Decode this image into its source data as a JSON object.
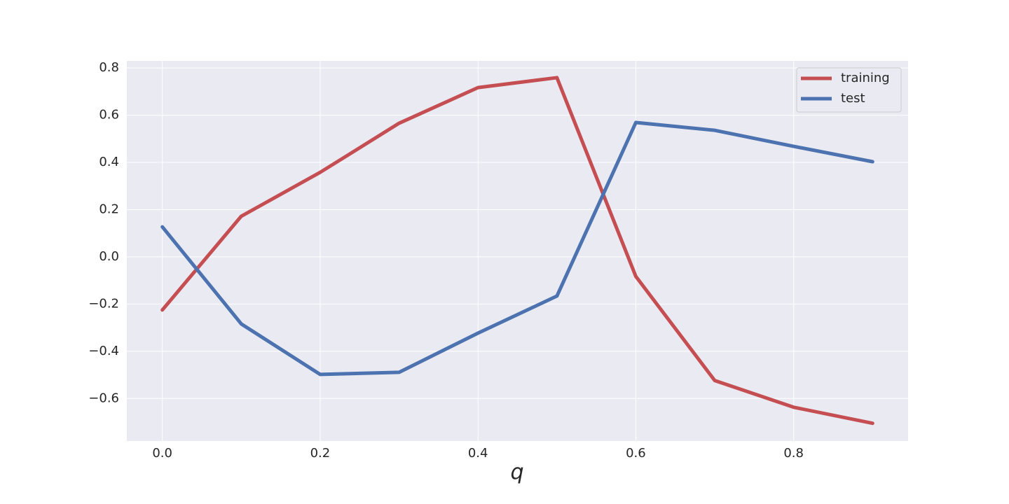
{
  "chart_data": {
    "type": "line",
    "xlabel": "q",
    "x": [
      0.0,
      0.1,
      0.2,
      0.3,
      0.4,
      0.5,
      0.6,
      0.7,
      0.8,
      0.9
    ],
    "series": [
      {
        "name": "training",
        "color": "#c44e52",
        "values": [
          -0.225,
          0.172,
          0.358,
          0.566,
          0.717,
          0.759,
          -0.083,
          -0.524,
          -0.637,
          -0.705
        ]
      },
      {
        "name": "test",
        "color": "#4c72b0",
        "values": [
          0.127,
          -0.284,
          -0.498,
          -0.489,
          -0.323,
          -0.166,
          0.569,
          0.536,
          0.468,
          0.403
        ]
      }
    ],
    "xlim": [
      -0.045,
      0.945
    ],
    "ylim": [
      -0.78,
      0.83
    ],
    "xticks": [
      {
        "value": 0,
        "label": "0.0"
      },
      0.2,
      0.4,
      0.6,
      0.8
    ],
    "yticks": [
      {
        "value": -0.6,
        "label": "−0.6"
      },
      {
        "value": -0.4,
        "label": "−0.4"
      },
      {
        "value": -0.2,
        "label": "−0.2"
      },
      {
        "value": 0,
        "label": "0.0"
      },
      0.2,
      0.4,
      0.6,
      0.8
    ],
    "grid": true,
    "legend": "upper right"
  }
}
